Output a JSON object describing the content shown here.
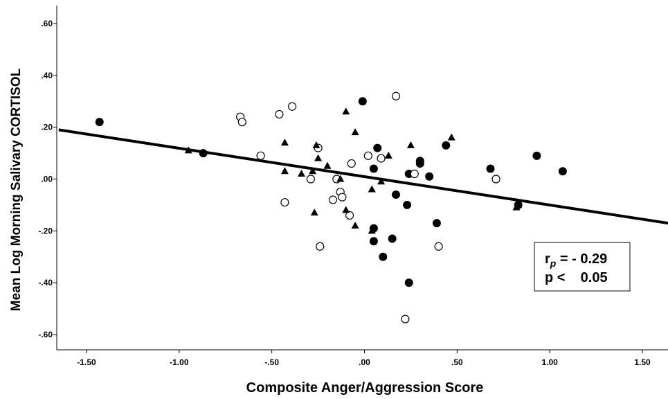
{
  "chart_data": {
    "type": "scatter",
    "title": "",
    "xlabel": "Composite Anger/Aggression Score",
    "ylabel": "Mean Log Morning Salivary CORTISOL",
    "xlim": [
      -1.65,
      1.65
    ],
    "ylim": [
      -0.66,
      0.66
    ],
    "x_ticks": [
      -1.5,
      -1.0,
      -0.5,
      0.0,
      0.5,
      1.0,
      1.5
    ],
    "x_tick_labels": [
      "-1.50",
      "-1.00",
      "-.50",
      ".00",
      ".50",
      "1.00",
      "1.50"
    ],
    "y_ticks": [
      0.6,
      0.4,
      0.2,
      0.0,
      -0.2,
      -0.4,
      -0.6
    ],
    "y_tick_labels": [
      ".60",
      ".40",
      ".20",
      ".00",
      "-.20",
      "-.40",
      "-.60"
    ],
    "grid": false,
    "series": [
      {
        "marker": "filled-circle",
        "color": "#000000",
        "x": [
          -1.43,
          -0.87,
          -0.01,
          0.07,
          0.05,
          0.05,
          0.05,
          0.1,
          0.15,
          0.17,
          0.23,
          0.24,
          0.24,
          0.3,
          0.3,
          0.35,
          0.39,
          0.44,
          0.68,
          0.83,
          0.93,
          1.07
        ],
        "y": [
          0.22,
          0.1,
          0.3,
          0.12,
          0.04,
          -0.19,
          -0.24,
          -0.3,
          -0.23,
          -0.06,
          -0.1,
          0.02,
          -0.4,
          0.07,
          0.06,
          0.01,
          -0.17,
          0.13,
          0.04,
          -0.1,
          0.09,
          0.03
        ]
      },
      {
        "marker": "open-circle",
        "color": "#000000",
        "x": [
          -0.67,
          -0.66,
          -0.56,
          -0.46,
          -0.43,
          -0.39,
          -0.29,
          -0.25,
          -0.24,
          -0.17,
          -0.15,
          -0.13,
          -0.12,
          -0.07,
          -0.08,
          0.02,
          0.09,
          0.17,
          0.22,
          0.27,
          0.4,
          0.71
        ],
        "y": [
          0.24,
          0.22,
          0.09,
          0.25,
          -0.09,
          0.28,
          0.0,
          0.12,
          -0.26,
          -0.08,
          0.0,
          -0.05,
          -0.07,
          0.06,
          -0.14,
          0.09,
          0.08,
          0.32,
          -0.54,
          0.02,
          -0.26,
          0.0
        ]
      },
      {
        "marker": "filled-triangle",
        "color": "#000000",
        "x": [
          -0.95,
          -0.43,
          -0.43,
          -0.34,
          -0.28,
          -0.27,
          -0.26,
          -0.25,
          -0.2,
          -0.13,
          -0.1,
          -0.1,
          -0.05,
          -0.05,
          0.04,
          0.04,
          0.09,
          0.13,
          0.25,
          0.47,
          0.82,
          0.83
        ],
        "y": [
          0.11,
          0.14,
          0.03,
          0.02,
          0.03,
          -0.13,
          0.13,
          0.08,
          0.05,
          0.0,
          -0.12,
          0.26,
          -0.18,
          0.18,
          -0.2,
          -0.04,
          -0.01,
          0.09,
          0.13,
          0.16,
          -0.11,
          -0.1
        ]
      }
    ],
    "regression_line": {
      "x": [
        -1.65,
        1.65
      ],
      "y": [
        0.19,
        -0.17
      ]
    },
    "annotation": {
      "line1_prefix": "r",
      "line1_sub": "p",
      "line1_value": " = - 0.29",
      "line2": "p <    0.05"
    }
  }
}
